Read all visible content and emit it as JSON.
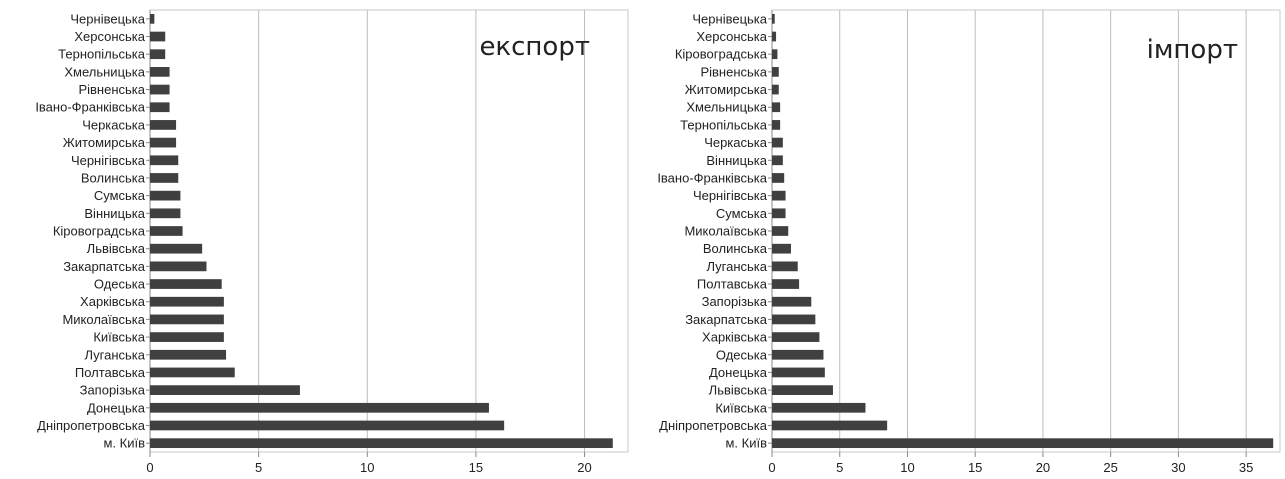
{
  "chart_data": [
    {
      "type": "bar",
      "orientation": "horizontal",
      "title": "експорт",
      "categories": [
        "Чернівецька",
        "Херсонська",
        "Тернопільська",
        "Хмельницька",
        "Рівненська",
        "Івано-Франківська",
        "Черкаська",
        "Житомирська",
        "Чернігівська",
        "Волинська",
        "Сумська",
        "Вінницька",
        "Кіровоградська",
        "Львівська",
        "Закарпатська",
        "Одеська",
        "Харківська",
        "Миколаївська",
        "Київська",
        "Луганська",
        "Полтавська",
        "Запорізька",
        "Донецька",
        "Дніпропетровська",
        "м. Київ"
      ],
      "values": [
        0.2,
        0.7,
        0.7,
        0.9,
        0.9,
        0.9,
        1.2,
        1.2,
        1.3,
        1.3,
        1.4,
        1.4,
        1.5,
        2.4,
        2.6,
        3.3,
        3.4,
        3.4,
        3.4,
        3.5,
        3.9,
        6.9,
        15.6,
        16.3,
        21.3
      ],
      "xlim": [
        0,
        22
      ],
      "xticks": [
        0,
        5,
        10,
        15,
        20
      ],
      "grid": true,
      "bar_color": "#404040"
    },
    {
      "type": "bar",
      "orientation": "horizontal",
      "title": "імпорт",
      "categories": [
        "Чернівецька",
        "Херсонська",
        "Кіровоградська",
        "Рівненська",
        "Житомирська",
        "Хмельницька",
        "Тернопільська",
        "Черкаська",
        "Вінницька",
        "Івано-Франківська",
        "Чернігівська",
        "Сумська",
        "Миколаївська",
        "Волинська",
        "Луганська",
        "Полтавська",
        "Запорізька",
        "Закарпатська",
        "Харківська",
        "Одеська",
        "Донецька",
        "Львівська",
        "Київська",
        "Дніпропетровська",
        "м. Київ"
      ],
      "values": [
        0.2,
        0.3,
        0.4,
        0.5,
        0.5,
        0.6,
        0.6,
        0.8,
        0.8,
        0.9,
        1.0,
        1.0,
        1.2,
        1.4,
        1.9,
        2.0,
        2.9,
        3.2,
        3.5,
        3.8,
        3.9,
        4.5,
        6.9,
        8.5,
        37.0
      ],
      "xlim": [
        0,
        37.5
      ],
      "xticks": [
        0,
        5,
        10,
        15,
        20,
        25,
        30,
        35
      ],
      "grid": true,
      "bar_color": "#404040"
    }
  ]
}
